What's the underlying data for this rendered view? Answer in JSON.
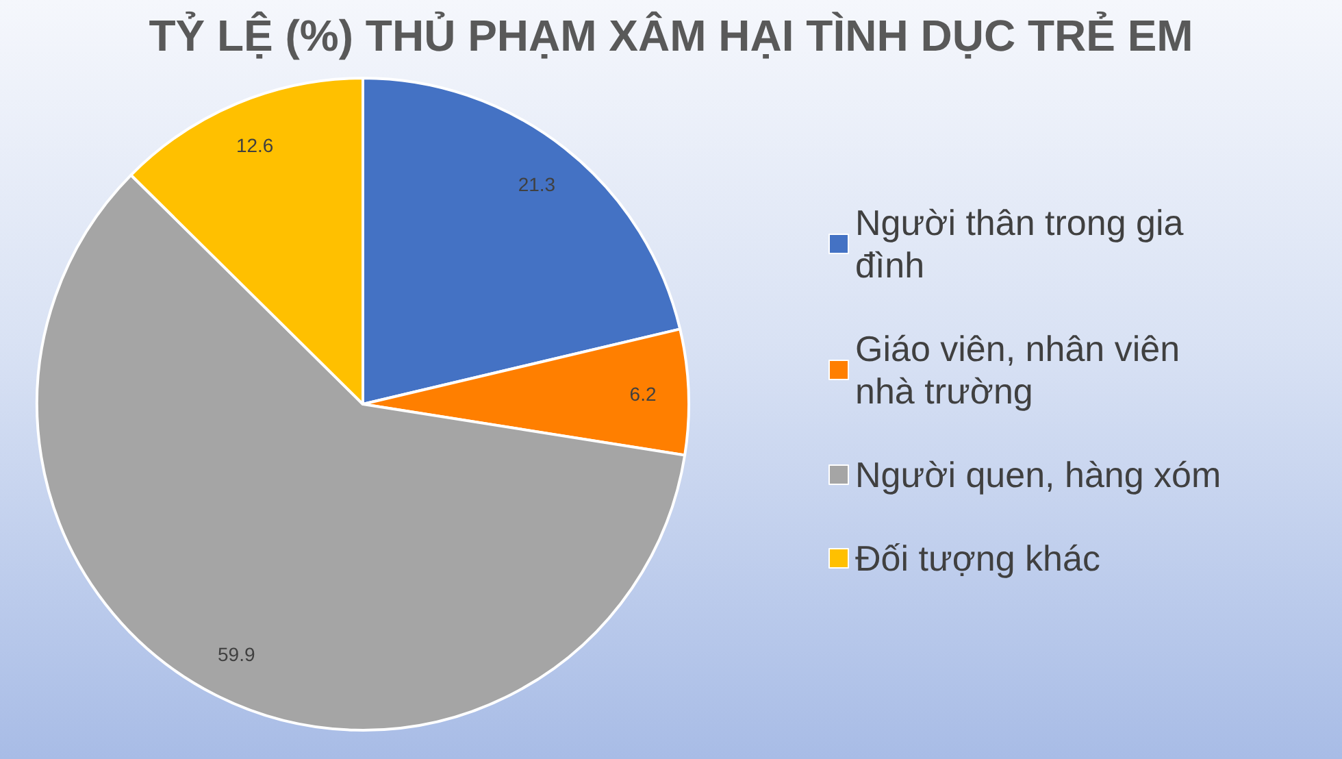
{
  "chart_data": {
    "type": "pie",
    "title": "TỶ LỆ (%) THỦ PHẠM XÂM HẠI TÌNH DỤC TRẺ EM",
    "categories": [
      "Người thân trong gia đình",
      "Giáo viên, nhân viên nhà trường",
      "Người quen, hàng xóm",
      "Đối tượng khác"
    ],
    "values": [
      21.3,
      6.2,
      59.9,
      12.6
    ],
    "colors": [
      "#4472c4",
      "#ff7f00",
      "#a5a5a5",
      "#ffc000"
    ],
    "data_labels": true,
    "legend": "right"
  }
}
